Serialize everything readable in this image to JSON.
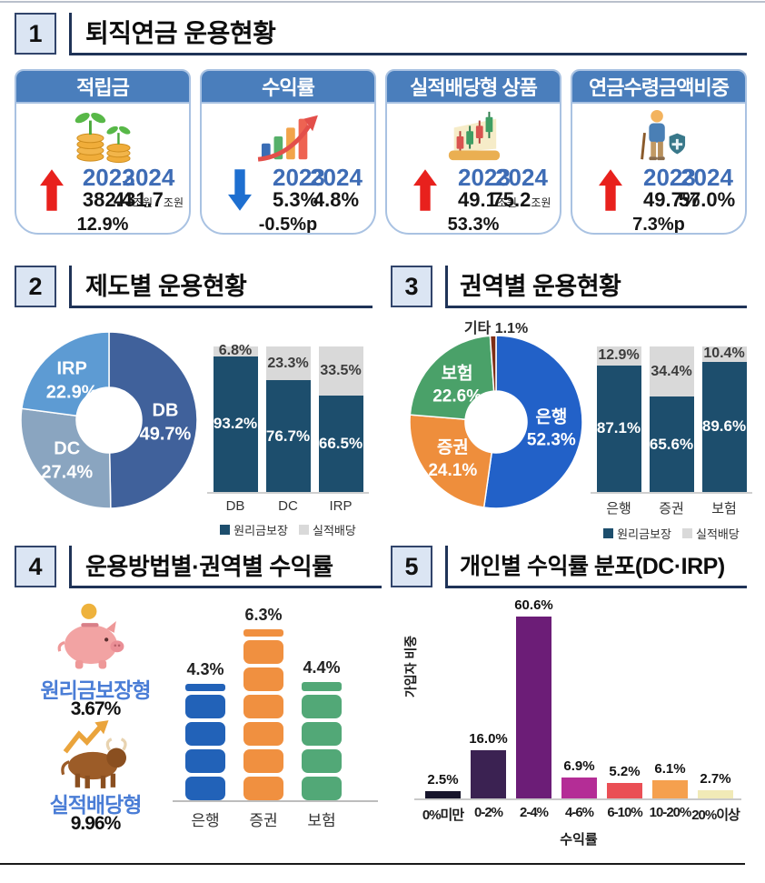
{
  "palette": {
    "header_navy": "#1f3357",
    "numbox_fill": "#dbe5f3",
    "card_header_blue": "#4a7ebc",
    "card_border": "#a9c2e2",
    "year_blue": "#3e6cb5",
    "up_arrow_red": "#e8211d",
    "down_arrow_blue": "#1e6fd0",
    "bar_navy": "#1d4e6d",
    "bar_gray": "#d9d9d9"
  },
  "s1": {
    "number": "1",
    "title": "퇴직연금 운용현황",
    "cards": [
      {
        "title": "적립금",
        "icon": "coin-sprout-icon",
        "year1": "2023",
        "val1": "382.4",
        "unit1": "조원",
        "year2": "2024",
        "val2": "431.7",
        "unit2": "조원",
        "delta": "12.9%",
        "dir": "up"
      },
      {
        "title": "수익률",
        "icon": "growth-bars-icon",
        "year1": "2023",
        "val1": "5.3%",
        "unit1": "",
        "year2": "2024",
        "val2": "4.8%",
        "unit2": "",
        "delta": "-0.5%p",
        "dir": "down"
      },
      {
        "title": "실적배당형 상품",
        "icon": "candlestick-icon",
        "year1": "2023",
        "val1": "49.1",
        "unit1": "조원",
        "year2": "2024",
        "val2": "75.2",
        "unit2": "조원",
        "delta": "53.3%",
        "dir": "up"
      },
      {
        "title": "연금수령금액비중",
        "icon": "retiree-shield-icon",
        "year1": "2023",
        "val1": "49.7%",
        "unit1": "",
        "year2": "2024",
        "val2": "57.0%",
        "unit2": "",
        "delta": "7.3%p",
        "dir": "up"
      }
    ]
  },
  "s2": {
    "number": "2",
    "title": "제도별 운용현황"
  },
  "s3": {
    "number": "3",
    "title": "권역별 운용현황"
  },
  "s4": {
    "number": "4",
    "title": "운용방법별·권역별 수익률",
    "items": [
      {
        "icon": "piggy-bank-icon",
        "label": "원리금보장형",
        "value": "3.67%"
      },
      {
        "icon": "bull-icon",
        "label": "실적배당형",
        "value": "9.96%"
      }
    ]
  },
  "s5": {
    "number": "5",
    "title": "개인별 수익률 분포(DC·IRP)"
  },
  "chart_data": [
    {
      "id": "donut-by-plan",
      "type": "pie",
      "donut": true,
      "title": "제도별 운용현황",
      "slices": [
        {
          "label": "DB",
          "value": 49.7,
          "color": "#40619b"
        },
        {
          "label": "DC",
          "value": 27.4,
          "color": "#8aa5c0"
        },
        {
          "label": "IRP",
          "value": 22.9,
          "color": "#5d9bd3"
        }
      ]
    },
    {
      "id": "stacked-by-plan",
      "type": "bar",
      "stacked": true,
      "ylim": [
        0,
        100
      ],
      "legend_position": "bottom",
      "categories": [
        "DB",
        "DC",
        "IRP"
      ],
      "series": [
        {
          "name": "원리금보장",
          "color": "#1d4e6d",
          "values": [
            93.2,
            76.7,
            66.5
          ]
        },
        {
          "name": "실적배당",
          "color": "#d9d9d9",
          "values": [
            6.8,
            23.3,
            33.5
          ]
        }
      ]
    },
    {
      "id": "donut-by-sector",
      "type": "pie",
      "donut": true,
      "title": "권역별 운용현황",
      "slices": [
        {
          "label": "은행",
          "value": 52.3,
          "color": "#2261c8"
        },
        {
          "label": "증권",
          "value": 24.1,
          "color": "#ee8e3c"
        },
        {
          "label": "보험",
          "value": 22.6,
          "color": "#4aa169"
        },
        {
          "label": "기타",
          "value": 1.1,
          "color": "#7d2e16",
          "label_outside": true,
          "label_display": "기타 1.1%"
        }
      ]
    },
    {
      "id": "stacked-by-sector",
      "type": "bar",
      "stacked": true,
      "ylim": [
        0,
        100
      ],
      "legend_position": "bottom",
      "categories": [
        "은행",
        "증권",
        "보험"
      ],
      "series": [
        {
          "name": "원리금보장",
          "color": "#1d4e6d",
          "values": [
            87.1,
            65.6,
            89.6
          ]
        },
        {
          "name": "실적배당",
          "color": "#d9d9d9",
          "values": [
            12.9,
            34.4,
            10.4
          ]
        }
      ]
    },
    {
      "id": "return-by-sector",
      "type": "bar",
      "segmented": true,
      "categories": [
        "은행",
        "증권",
        "보험"
      ],
      "values": [
        4.3,
        6.3,
        4.4
      ],
      "values_display": [
        "4.3%",
        "6.3%",
        "4.4%"
      ],
      "colors": [
        "#2262b8",
        "#f09040",
        "#52a877"
      ]
    },
    {
      "id": "individual-return-distribution",
      "type": "bar",
      "categories": [
        "0%미만",
        "0-2%",
        "2-4%",
        "4-6%",
        "6-10%",
        "10-20%",
        "20%이상"
      ],
      "values": [
        2.5,
        16.0,
        60.6,
        6.9,
        5.2,
        6.1,
        2.7
      ],
      "values_display": [
        "2.5%",
        "16.0%",
        "60.6%",
        "6.9%",
        "5.2%",
        "6.1%",
        "2.7%"
      ],
      "colors": [
        "#17152b",
        "#3b2252",
        "#6c1d77",
        "#b42d96",
        "#ea4f55",
        "#f5a04e",
        "#f1eab7"
      ],
      "xlabel": "수익률",
      "ylabel": "가입자 비중",
      "ylim": [
        0,
        65
      ]
    }
  ]
}
